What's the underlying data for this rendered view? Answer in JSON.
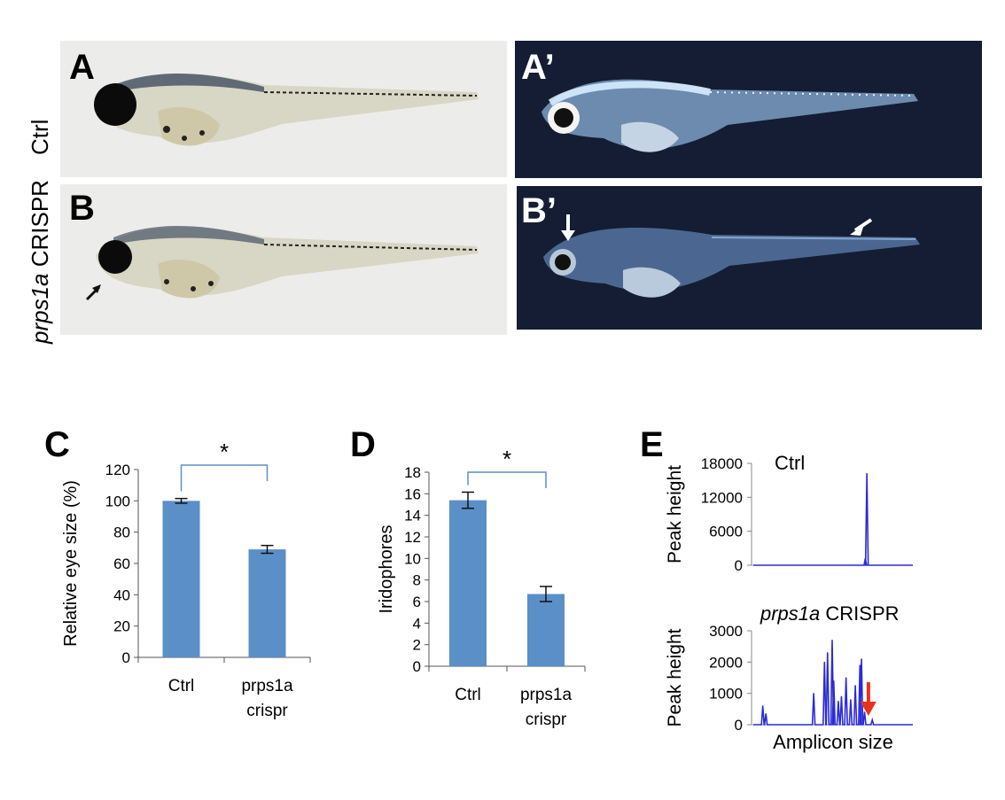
{
  "panels": {
    "A": {
      "letter": "A",
      "row_label": "Ctrl"
    },
    "A_prime": {
      "letter": "A’"
    },
    "B": {
      "letter": "B",
      "row_label_italic": "prps1a",
      "row_label_rest": " CRISPR"
    },
    "B_prime": {
      "letter": "B’"
    }
  },
  "colors": {
    "bar": "#5b8fc7",
    "bracket": "#5b8fc7",
    "brightfield_bg": "#ececea",
    "darkfield_bg": "#141d33",
    "trace": "#2a2ad8",
    "arrow_red": "#e8321e"
  },
  "chart_data": [
    {
      "panel": "C",
      "type": "bar",
      "ylabel": "Relative eye size (%)",
      "categories": [
        "Ctrl",
        "prps1a crispr"
      ],
      "category_lines": [
        [
          "Ctrl"
        ],
        [
          "prps1a",
          "crispr"
        ]
      ],
      "values": [
        100,
        69
      ],
      "errors": [
        1.5,
        2.5
      ],
      "ylim": [
        0,
        120
      ],
      "yticks": [
        "0",
        "20",
        "40",
        "60",
        "80",
        "100",
        "120"
      ],
      "significance": "*"
    },
    {
      "panel": "D",
      "type": "bar",
      "ylabel": "Iridophores",
      "categories": [
        "Ctrl",
        "prps1a crispr"
      ],
      "category_lines": [
        [
          "Ctrl"
        ],
        [
          "prps1a",
          "crispr"
        ]
      ],
      "values": [
        15.4,
        6.7
      ],
      "errors": [
        0.75,
        0.7
      ],
      "ylim": [
        0,
        18
      ],
      "yticks": [
        "0",
        "2",
        "4",
        "6",
        "8",
        "10",
        "12",
        "14",
        "16",
        "18"
      ],
      "significance": "*"
    },
    {
      "panel": "E",
      "type": "line",
      "xlabel": "Amplicon size",
      "traces": [
        {
          "title": "Ctrl",
          "ylabel": "Peak height",
          "ylim": [
            0,
            18000
          ],
          "yticks": [
            "0",
            "6000",
            "12000",
            "18000"
          ],
          "peaks": [
            [
              0.725,
              16200
            ],
            [
              0.715,
              1200
            ]
          ]
        },
        {
          "title_italic": "prps1a",
          "title_rest": " CRISPR",
          "ylabel": "Peak height",
          "ylim": [
            0,
            3000
          ],
          "yticks": [
            "0",
            "1000",
            "2000",
            "3000"
          ],
          "peaks": [
            [
              0.05,
              600
            ],
            [
              0.07,
              350
            ],
            [
              0.38,
              1000
            ],
            [
              0.45,
              2000
            ],
            [
              0.47,
              2300
            ],
            [
              0.5,
              2700
            ],
            [
              0.51,
              1400
            ],
            [
              0.54,
              750
            ],
            [
              0.56,
              900
            ],
            [
              0.59,
              1500
            ],
            [
              0.62,
              800
            ],
            [
              0.65,
              1250
            ],
            [
              0.68,
              1900
            ],
            [
              0.69,
              2100
            ],
            [
              0.71,
              400
            ],
            [
              0.76,
              150
            ]
          ],
          "arrow": "red-down-arrow"
        }
      ]
    }
  ]
}
